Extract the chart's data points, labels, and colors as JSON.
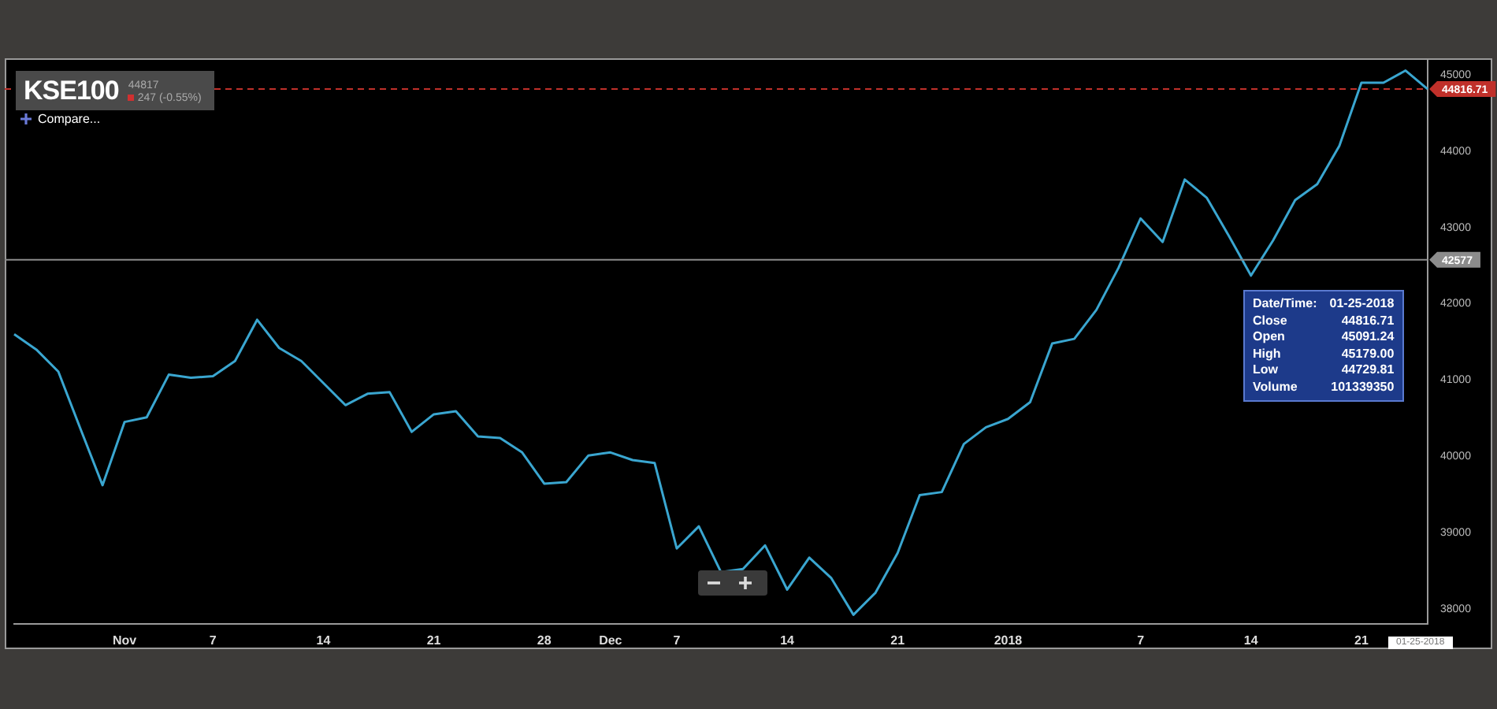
{
  "chart_data": {
    "type": "line",
    "title": "KSE100",
    "subtitle": "44817",
    "categories": [
      null,
      null,
      null,
      null,
      null,
      "Nov",
      null,
      null,
      null,
      "7",
      null,
      null,
      null,
      null,
      "14",
      null,
      null,
      null,
      null,
      "21",
      null,
      null,
      null,
      null,
      "28",
      null,
      null,
      "Dec",
      null,
      null,
      "7",
      null,
      null,
      null,
      null,
      "14",
      null,
      null,
      null,
      null,
      "21",
      null,
      null,
      null,
      null,
      "2018",
      null,
      null,
      null,
      null,
      null,
      "7",
      null,
      null,
      null,
      null,
      "14",
      null,
      null,
      null,
      null,
      "21",
      null,
      null,
      null
    ],
    "series": [
      {
        "color": "#3aa6d0",
        "values": [
          41600,
          41400,
          41110,
          40360,
          39620,
          40450,
          40510,
          41070,
          41030,
          41050,
          41250,
          41790,
          41420,
          41250,
          40960,
          40670,
          40820,
          40840,
          40320,
          40550,
          40590,
          40260,
          40240,
          40050,
          39640,
          39660,
          40010,
          40050,
          39950,
          39910,
          38790,
          39080,
          38480,
          38520,
          38830,
          38250,
          38670,
          38400,
          37920,
          38210,
          38730,
          39490,
          39530,
          40160,
          40380,
          40490,
          40710,
          41480,
          41540,
          41920,
          42470,
          43120,
          42810,
          43630,
          43390,
          42890,
          42370,
          42830,
          43360,
          43570,
          44070,
          44900,
          44900,
          45060,
          44816.71
        ]
      }
    ],
    "ylim": [
      37800,
      45200
    ],
    "yticks": [
      38000,
      39000,
      40000,
      41000,
      42000,
      43000,
      44000,
      45000
    ],
    "grid": false,
    "legend": false,
    "marker": "none",
    "line_style": "solid",
    "ref_lines": [
      {
        "axis": "y",
        "value": 44816.71,
        "label": "44816.71",
        "color": "#c0302a",
        "line_style": "dashed"
      },
      {
        "axis": "y",
        "value": 42577,
        "label": "42577",
        "color": "#8c8c8c",
        "line_style": "solid"
      }
    ],
    "annotations": [
      "247 (-0.55%)",
      "Compare...",
      "Date/Time:",
      "01-25-2018",
      "Close",
      "44816.71",
      "Open",
      "45091.24",
      "High",
      "45179.00",
      "Low",
      "44729.81",
      "Volume",
      "101339350",
      "01-25-2018"
    ]
  }
}
